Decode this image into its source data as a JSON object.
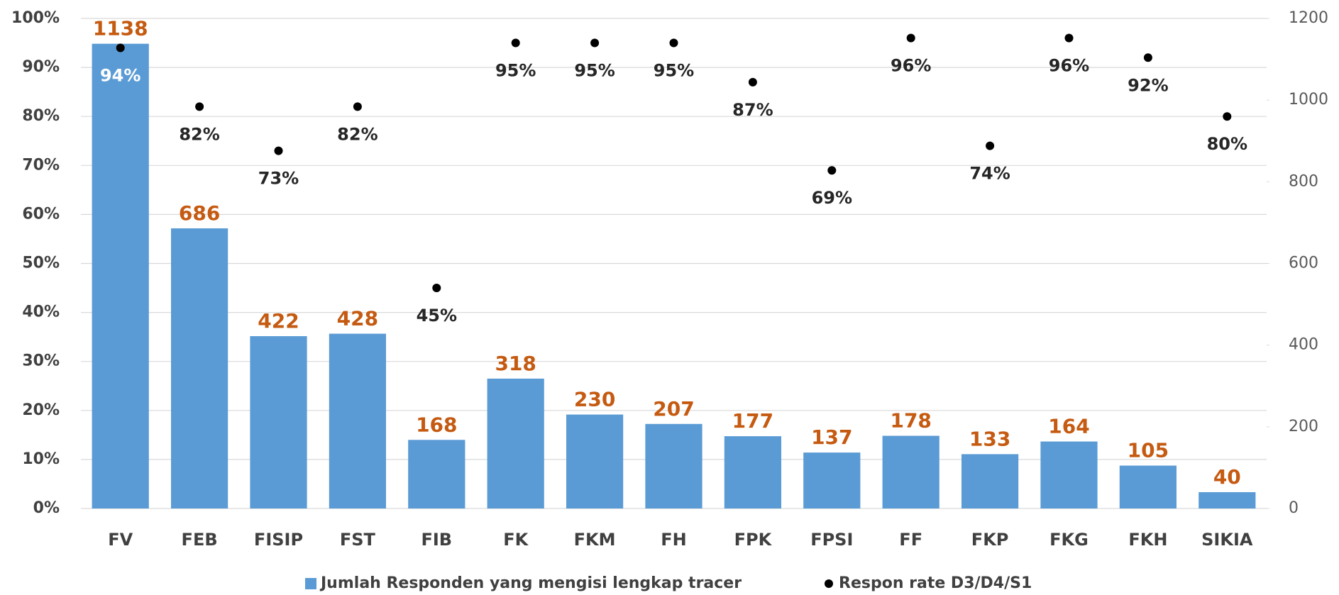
{
  "chart_data": {
    "type": "bar-dot",
    "categories": [
      "FV",
      "FEB",
      "FISIP",
      "FST",
      "FIB",
      "FK",
      "FKM",
      "FH",
      "FPK",
      "FPSI",
      "FF",
      "FKP",
      "FKG",
      "FKH",
      "SIKIA"
    ],
    "series": [
      {
        "name": "Jumlah Responden yang mengisi lengkap tracer",
        "color": "#5b9bd5",
        "axis": "y2",
        "label_color": "#c55a11",
        "values": [
          1138,
          686,
          422,
          428,
          168,
          318,
          230,
          207,
          177,
          137,
          178,
          133,
          164,
          105,
          40
        ]
      },
      {
        "name": "Respon rate D3/D4/S1",
        "color": "#000000",
        "axis": "y",
        "label_color": "#262626",
        "values": [
          94,
          82,
          73,
          82,
          45,
          95,
          95,
          95,
          87,
          69,
          96,
          74,
          96,
          92,
          80
        ],
        "value_labels": [
          "94%",
          "82%",
          "73%",
          "82%",
          "45%",
          "95%",
          "95%",
          "95%",
          "87%",
          "69%",
          "96%",
          "74%",
          "96%",
          "92%",
          "80%"
        ]
      }
    ],
    "ylim": [
      0,
      100
    ],
    "yticks": [
      {
        "value": 0,
        "label": "0%"
      },
      {
        "value": 10,
        "label": "10%"
      },
      {
        "value": 20,
        "label": "20%"
      },
      {
        "value": 30,
        "label": "30%"
      },
      {
        "value": 40,
        "label": "40%"
      },
      {
        "value": 50,
        "label": "50%"
      },
      {
        "value": 60,
        "label": "60%"
      },
      {
        "value": 70,
        "label": "70%"
      },
      {
        "value": 80,
        "label": "80%"
      },
      {
        "value": 90,
        "label": "90%"
      },
      {
        "value": 100,
        "label": "100%"
      }
    ],
    "y2lim": [
      0,
      1200
    ],
    "y2ticks": [
      0,
      200,
      400,
      600,
      800,
      1000,
      1200
    ],
    "legend": "bottom"
  }
}
